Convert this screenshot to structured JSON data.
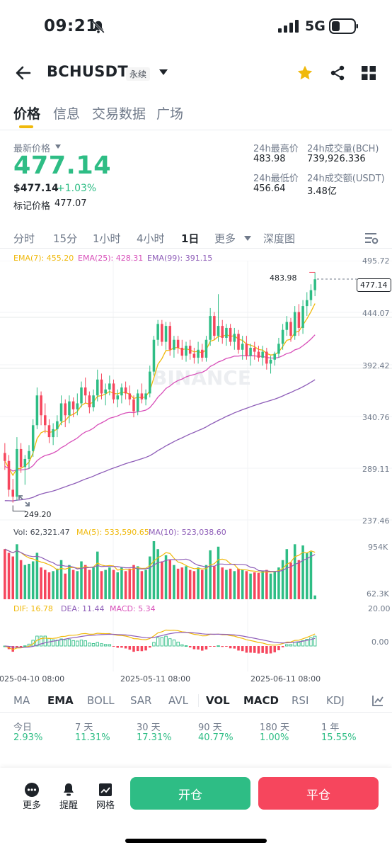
{
  "status_bar": {
    "time": "09:21",
    "network": "5G"
  },
  "header": {
    "symbol": "BCHUSDT",
    "contract_type": "永续"
  },
  "tabs": [
    "价格",
    "信息",
    "交易数据",
    "广场"
  ],
  "price": {
    "latest_label": "最新价格",
    "last": "477.14",
    "usd": "$477.14",
    "change": "+1.03%",
    "mark_label": "标记价格",
    "mark": "477.07"
  },
  "stats": {
    "high_label": "24h最高价",
    "high": "483.98",
    "low_label": "24h最低价",
    "low": "456.64",
    "vol_label": "24h成交量(BCH)",
    "vol": "739,926.336",
    "turnover_label": "24h成交额(USDT)",
    "turnover": "3.48亿"
  },
  "timeframes": [
    "分时",
    "15分",
    "1小时",
    "4小时",
    "1日",
    "更多",
    "深度图"
  ],
  "active_timeframe": "1日",
  "ema_legend": {
    "ema7": "EMA(7): 455.20",
    "ema25": "EMA(25): 428.31",
    "ema99": "EMA(99): 391.15"
  },
  "price_axis": [
    "495.72",
    "444.07",
    "392.42",
    "340.76",
    "289.11",
    "237.46"
  ],
  "markers": {
    "high": "483.98",
    "low": "249.20",
    "current": "477.14"
  },
  "watermark": "BINANCE",
  "volume_legend": {
    "vol": "Vol: 62,321.47",
    "ma5": "MA(5): 533,590.65",
    "ma10": "MA(10): 523,038.60"
  },
  "volume_axis": [
    "954K",
    "62.3K"
  ],
  "macd_legend": {
    "dif": "DIF: 16.78",
    "dea": "DEA: 11.44",
    "macd": "MACD: 5.34"
  },
  "macd_axis": [
    "20.00",
    "0.00"
  ],
  "date_axis": [
    "2025-04-10 08:00",
    "2025-05-11 08:00",
    "2025-06-11 08:00"
  ],
  "indicators": [
    "MA",
    "EMA",
    "BOLL",
    "SAR",
    "AVL",
    "VOL",
    "MACD",
    "RSI",
    "KDJ"
  ],
  "performance": [
    {
      "label": "今日",
      "value": "2.93%"
    },
    {
      "label": "7 天",
      "value": "11.31%"
    },
    {
      "label": "30 天",
      "value": "17.31%"
    },
    {
      "label": "90 天",
      "value": "40.77%"
    },
    {
      "label": "180 天",
      "value": "1.00%"
    },
    {
      "label": "1 年",
      "value": "15.55%"
    }
  ],
  "bottom": {
    "more": "更多",
    "alert": "提醒",
    "grid": "网格",
    "open": "开仓",
    "close": "平仓"
  },
  "colors": {
    "up": "#2ebd85",
    "down": "#f6465d",
    "ema7": "#f0b90b",
    "ema25": "#d84fb9",
    "ema99": "#8e5db8",
    "accent": "#f0b90b"
  },
  "chart_data": {
    "type": "candlestick",
    "ohlc": [
      [
        302,
        312,
        285,
        294
      ],
      [
        294,
        300,
        258,
        265
      ],
      [
        265,
        276,
        252,
        258
      ],
      [
        258,
        318,
        254,
        306
      ],
      [
        306,
        312,
        282,
        288
      ],
      [
        288,
        300,
        270,
        296
      ],
      [
        296,
        310,
        286,
        304
      ],
      [
        304,
        336,
        298,
        330
      ],
      [
        330,
        368,
        326,
        360
      ],
      [
        360,
        364,
        330,
        340
      ],
      [
        340,
        352,
        322,
        330
      ],
      [
        330,
        336,
        312,
        318
      ],
      [
        318,
        332,
        310,
        326
      ],
      [
        326,
        340,
        318,
        334
      ],
      [
        334,
        360,
        330,
        352
      ],
      [
        352,
        356,
        328,
        340
      ],
      [
        340,
        360,
        332,
        354
      ],
      [
        354,
        358,
        338,
        346
      ],
      [
        346,
        362,
        340,
        352
      ],
      [
        352,
        374,
        348,
        368
      ],
      [
        368,
        378,
        352,
        360
      ],
      [
        360,
        364,
        342,
        348
      ],
      [
        348,
        366,
        344,
        360
      ],
      [
        360,
        386,
        354,
        376
      ],
      [
        376,
        382,
        356,
        362
      ],
      [
        362,
        372,
        350,
        366
      ],
      [
        366,
        380,
        360,
        372
      ],
      [
        372,
        376,
        352,
        356
      ],
      [
        356,
        366,
        348,
        360
      ],
      [
        360,
        372,
        352,
        368
      ],
      [
        368,
        374,
        356,
        362
      ],
      [
        362,
        370,
        350,
        356
      ],
      [
        356,
        360,
        338,
        344
      ],
      [
        344,
        366,
        340,
        362
      ],
      [
        362,
        372,
        352,
        356
      ],
      [
        356,
        366,
        350,
        362
      ],
      [
        362,
        390,
        358,
        384
      ],
      [
        384,
        420,
        380,
        416
      ],
      [
        416,
        436,
        410,
        432
      ],
      [
        432,
        436,
        410,
        414
      ],
      [
        414,
        434,
        406,
        430
      ],
      [
        430,
        434,
        400,
        406
      ],
      [
        406,
        420,
        398,
        416
      ],
      [
        416,
        420,
        402,
        408
      ],
      [
        408,
        416,
        396,
        400
      ],
      [
        400,
        414,
        394,
        410
      ],
      [
        410,
        416,
        396,
        402
      ],
      [
        402,
        408,
        392,
        398
      ],
      [
        398,
        414,
        392,
        406
      ],
      [
        406,
        412,
        394,
        398
      ],
      [
        398,
        420,
        394,
        416
      ],
      [
        416,
        448,
        410,
        440
      ],
      [
        440,
        444,
        416,
        420
      ],
      [
        420,
        462,
        414,
        430
      ],
      [
        430,
        436,
        412,
        418
      ],
      [
        418,
        432,
        410,
        428
      ],
      [
        428,
        432,
        410,
        414
      ],
      [
        414,
        428,
        406,
        422
      ],
      [
        422,
        426,
        402,
        406
      ],
      [
        406,
        420,
        396,
        412
      ],
      [
        412,
        420,
        396,
        400
      ],
      [
        400,
        412,
        390,
        408
      ],
      [
        408,
        414,
        396,
        404
      ],
      [
        404,
        410,
        394,
        398
      ],
      [
        398,
        410,
        390,
        404
      ],
      [
        404,
        408,
        386,
        392
      ],
      [
        392,
        400,
        382,
        396
      ],
      [
        396,
        404,
        390,
        402
      ],
      [
        402,
        418,
        398,
        412
      ],
      [
        412,
        432,
        406,
        426
      ],
      [
        426,
        440,
        420,
        434
      ],
      [
        434,
        438,
        414,
        420
      ],
      [
        420,
        450,
        416,
        444
      ],
      [
        444,
        452,
        420,
        428
      ],
      [
        428,
        456,
        422,
        450
      ],
      [
        450,
        464,
        440,
        456
      ],
      [
        456,
        472,
        450,
        466
      ],
      [
        466,
        484,
        460,
        477
      ]
    ],
    "volume": [
      820,
      760,
      700,
      900,
      640,
      560,
      580,
      620,
      760,
      520,
      480,
      440,
      460,
      500,
      640,
      420,
      560,
      480,
      460,
      620,
      560,
      480,
      520,
      780,
      460,
      480,
      520,
      480,
      440,
      520,
      460,
      500,
      560,
      540,
      460,
      480,
      700,
      950,
      820,
      620,
      720,
      640,
      560,
      500,
      520,
      540,
      480,
      460,
      520,
      480,
      560,
      800,
      540,
      860,
      520,
      480,
      500,
      460,
      500,
      480,
      460,
      420,
      440,
      430,
      460,
      480,
      420,
      460,
      520,
      640,
      820,
      600,
      900,
      640,
      880,
      760,
      780,
      62
    ],
    "price_range": [
      237.46,
      495.72
    ],
    "volume_range": [
      0,
      954000
    ],
    "macd_range": [
      -20,
      20
    ],
    "current_price": 477.14,
    "period_high": 483.98,
    "period_low": 249.2
  }
}
